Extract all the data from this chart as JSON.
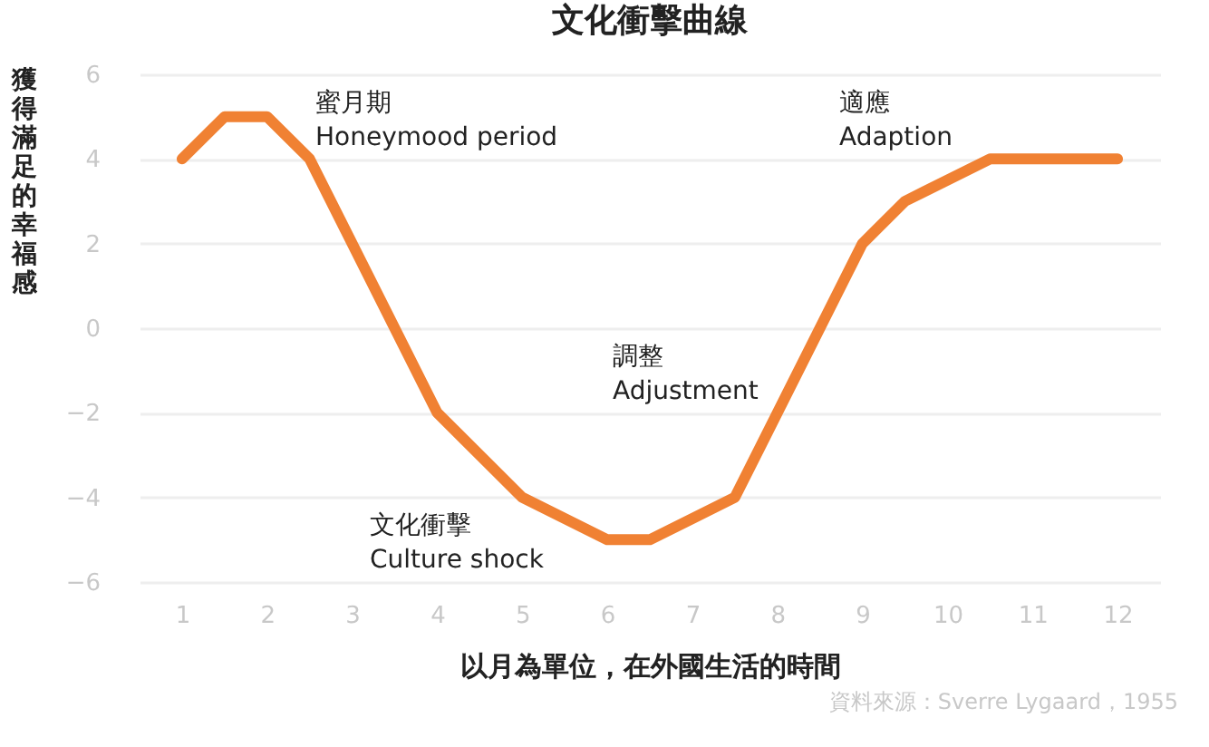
{
  "chart_data": {
    "type": "line",
    "title": "文化衝擊曲線",
    "xlabel": "以月為單位，在外國生活的時間",
    "ylabel": "獲得滿足的幸福感",
    "series": [
      {
        "color": "#f08133",
        "x": [
          1,
          1.5,
          2,
          2.5,
          4,
          5,
          6,
          6.5,
          7.5,
          9,
          9.5,
          10.5,
          12
        ],
        "values": [
          4,
          5,
          5,
          4,
          -2,
          -4,
          -5,
          -5,
          -4,
          2,
          3,
          4,
          4
        ]
      }
    ],
    "xlim": [
      0.5,
      12.5
    ],
    "xticks": [
      1,
      2,
      3,
      4,
      5,
      6,
      7,
      8,
      9,
      10,
      11,
      12
    ],
    "ylim": [
      -6,
      6
    ],
    "yticks": [
      -6,
      -4,
      -2,
      0,
      2,
      4,
      6
    ],
    "grid": "y",
    "marker": "none",
    "line_style": "solid",
    "annotations": [
      "蜜月期\nHoneymood period",
      "文化衝擊\nCulture shock",
      "調整\nAdjustment",
      "適應\nAdaption",
      "資料來源：Sverre Lygaard，1955"
    ]
  }
}
